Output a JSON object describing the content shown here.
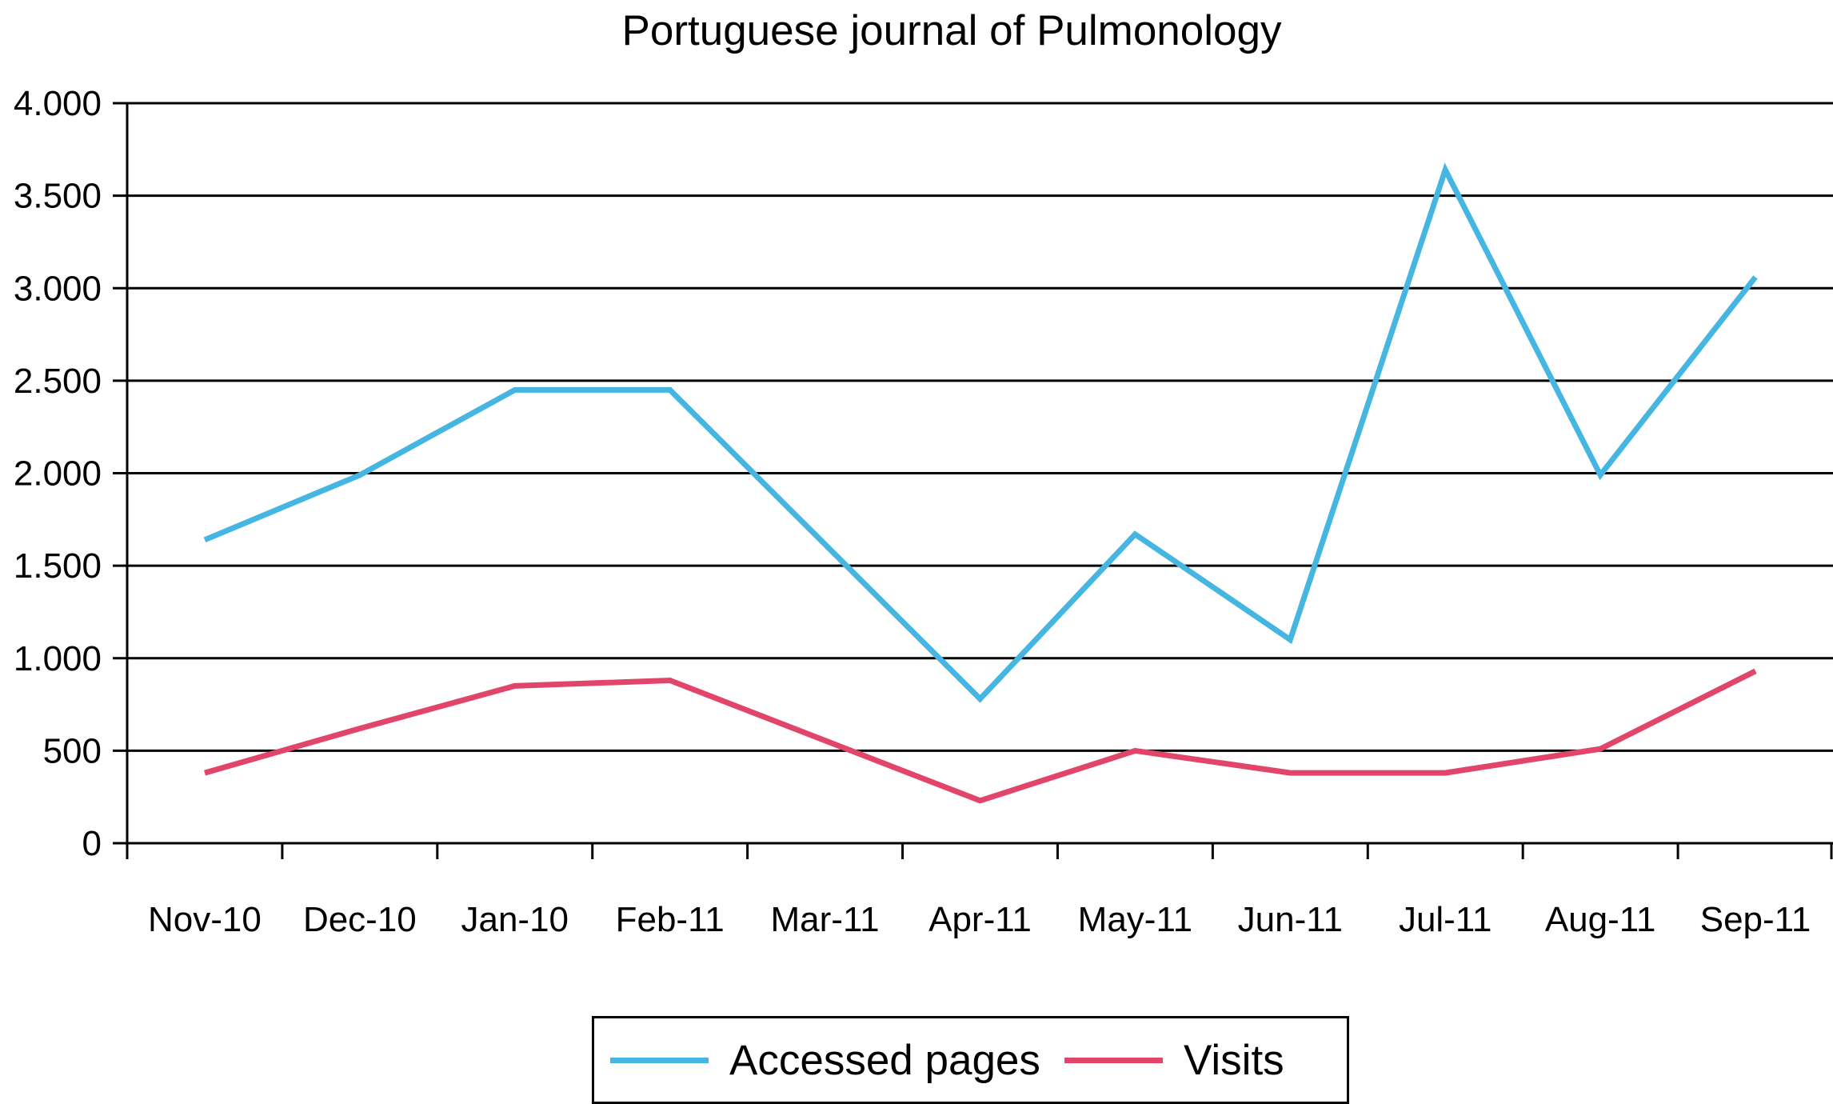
{
  "chart_data": {
    "type": "line",
    "title": "Portuguese journal of Pulmonology",
    "xlabel": "",
    "ylabel": "",
    "categories": [
      "Nov-10",
      "Dec-10",
      "Jan-10",
      "Feb-11",
      "Mar-11",
      "Apr-11",
      "May-11",
      "Jun-11",
      "Jul-11",
      "Aug-11",
      "Sep-11"
    ],
    "ylim": [
      0,
      4000
    ],
    "yticks": [
      0,
      500,
      1000,
      1500,
      2000,
      2500,
      3000,
      3500,
      4000
    ],
    "ytick_labels": [
      "0",
      "500",
      "1.000",
      "1.500",
      "2.000",
      "2.500",
      "3.000",
      "3.500",
      "4.000"
    ],
    "grid": true,
    "legend_position": "bottom",
    "series": [
      {
        "name": "Accessed pages",
        "color": "#45b5e2",
        "x": [
          "Nov-10",
          "Dec-10",
          "Jan-10",
          "Feb-11",
          "Apr-11",
          "May-11",
          "Jun-11",
          "Jul-11",
          "Aug-11",
          "Sep-11"
        ],
        "values": [
          1640,
          1990,
          2450,
          2450,
          780,
          1670,
          1100,
          3640,
          1990,
          3060
        ]
      },
      {
        "name": "Visits",
        "color": "#e2456a",
        "x": [
          "Nov-10",
          "Dec-10",
          "Jan-10",
          "Feb-11",
          "Apr-11",
          "May-11",
          "Jun-11",
          "Jul-11",
          "Aug-11",
          "Sep-11"
        ],
        "values": [
          380,
          620,
          850,
          880,
          230,
          500,
          380,
          380,
          510,
          930
        ]
      }
    ]
  }
}
